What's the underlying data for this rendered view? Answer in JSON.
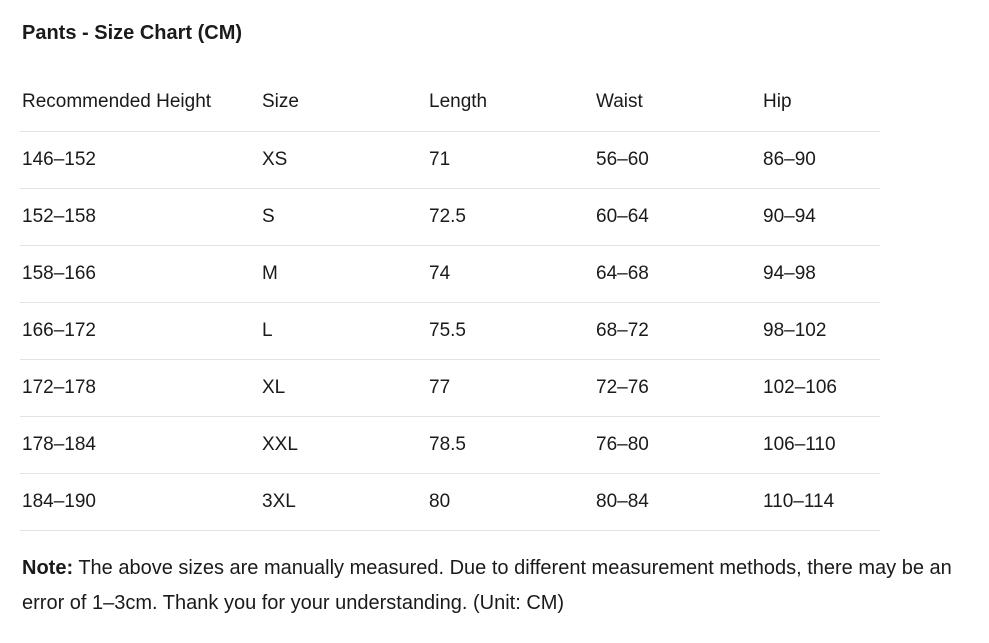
{
  "header": {
    "title": "Pants - Size Chart (CM)"
  },
  "table": {
    "columns": [
      "Recommended Height",
      "Size",
      "Length",
      "Waist",
      "Hip"
    ],
    "rows": [
      [
        "146–152",
        "XS",
        "71",
        "56–60",
        "86–90"
      ],
      [
        "152–158",
        "S",
        "72.5",
        "60–64",
        "90–94"
      ],
      [
        "158–166",
        "M",
        "74",
        "64–68",
        "94–98"
      ],
      [
        "166–172",
        "L",
        "75.5",
        "68–72",
        "98–102"
      ],
      [
        "172–178",
        "XL",
        "77",
        "72–76",
        "102–106"
      ],
      [
        "178–184",
        "XXL",
        "78.5",
        "76–80",
        "106–110"
      ],
      [
        "184–190",
        "3XL",
        "80",
        "80–84",
        "110–114"
      ]
    ]
  },
  "note": {
    "label": "Note:",
    "text": "The above sizes are manually measured. Due to different measurement methods, there may be an error of 1–3cm. Thank you for your understanding. (Unit: CM)"
  }
}
